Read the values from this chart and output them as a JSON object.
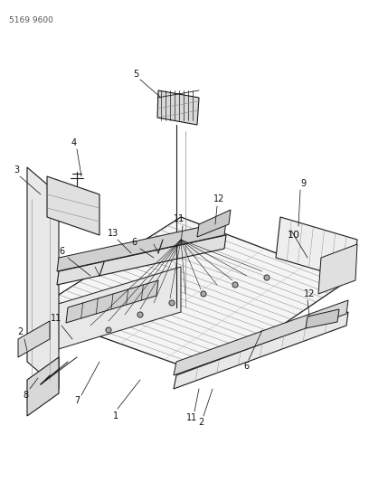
{
  "part_number_label": "5169 9600",
  "bg": "#ffffff",
  "lc": "#1a1a1a",
  "lc_gray": "#888888",
  "lc_lgray": "#bbbbbb",
  "figsize": [
    4.08,
    5.33
  ],
  "dpi": 100
}
